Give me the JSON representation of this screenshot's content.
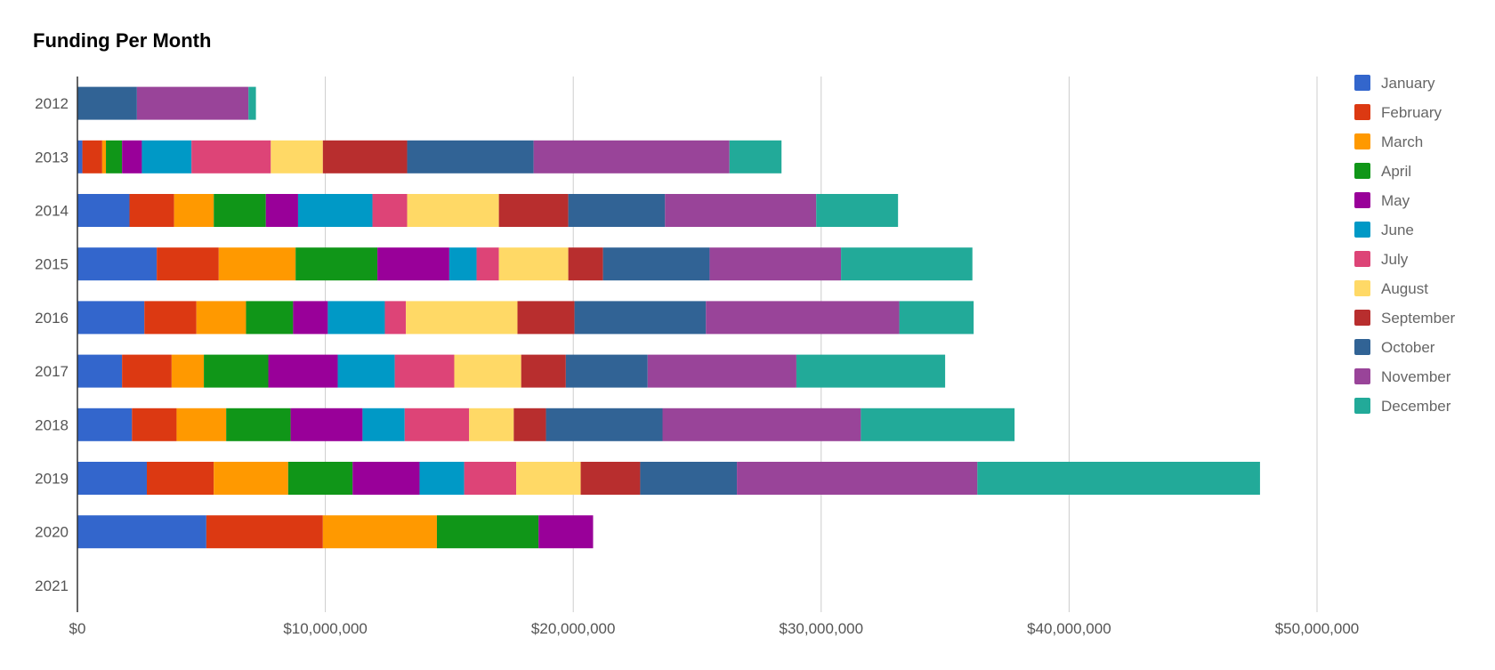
{
  "chart_data": {
    "type": "bar",
    "orientation": "horizontal",
    "stacked": true,
    "title": "Funding Per Month",
    "xlabel": "",
    "ylabel": "",
    "xlim": [
      0,
      50000000
    ],
    "x_ticks": [
      0,
      10000000,
      20000000,
      30000000,
      40000000,
      50000000
    ],
    "x_tick_labels": [
      "$0",
      "$10,000,000",
      "$20,000,000",
      "$30,000,000",
      "$40,000,000",
      "$50,000,000"
    ],
    "grid": true,
    "legend_position": "right",
    "categories": [
      "2012",
      "2013",
      "2014",
      "2015",
      "2016",
      "2017",
      "2018",
      "2019",
      "2020",
      "2021"
    ],
    "series": [
      {
        "name": "January",
        "color": "#3366cc",
        "values": [
          0,
          200000,
          2100000,
          3200000,
          2700000,
          1800000,
          2200000,
          2800000,
          5200000,
          0
        ]
      },
      {
        "name": "February",
        "color": "#dc3912",
        "values": [
          0,
          800000,
          1800000,
          2500000,
          2100000,
          2000000,
          1800000,
          2700000,
          4700000,
          0
        ]
      },
      {
        "name": "March",
        "color": "#ff9900",
        "values": [
          0,
          150000,
          1600000,
          3100000,
          2000000,
          1300000,
          2000000,
          3000000,
          4600000,
          0
        ]
      },
      {
        "name": "April",
        "color": "#109618",
        "values": [
          0,
          650000,
          2100000,
          3300000,
          1900000,
          2600000,
          2600000,
          2600000,
          4100000,
          0
        ]
      },
      {
        "name": "May",
        "color": "#990099",
        "values": [
          0,
          800000,
          1300000,
          2900000,
          1400000,
          2800000,
          2900000,
          2700000,
          2200000,
          0
        ]
      },
      {
        "name": "June",
        "color": "#0099c6",
        "values": [
          0,
          2000000,
          3000000,
          1100000,
          2300000,
          2300000,
          1700000,
          1800000,
          0,
          0
        ]
      },
      {
        "name": "July",
        "color": "#dd4477",
        "values": [
          0,
          3200000,
          1400000,
          900000,
          850000,
          2400000,
          2600000,
          2100000,
          0,
          0
        ]
      },
      {
        "name": "August",
        "color": "#ffd966",
        "values": [
          0,
          2100000,
          3700000,
          2800000,
          4500000,
          2700000,
          1800000,
          2600000,
          0,
          0
        ]
      },
      {
        "name": "September",
        "color": "#b82e2e",
        "values": [
          0,
          3400000,
          2800000,
          1400000,
          2300000,
          1800000,
          1300000,
          2400000,
          0,
          0
        ]
      },
      {
        "name": "October",
        "color": "#316395",
        "values": [
          2400000,
          5100000,
          3900000,
          4300000,
          5300000,
          3300000,
          4700000,
          3900000,
          0,
          0
        ]
      },
      {
        "name": "November",
        "color": "#994499",
        "values": [
          4500000,
          7900000,
          6100000,
          5300000,
          7800000,
          6000000,
          8000000,
          9700000,
          0,
          0
        ]
      },
      {
        "name": "December",
        "color": "#22aa99",
        "values": [
          300000,
          2100000,
          3300000,
          5300000,
          3000000,
          6000000,
          6200000,
          11400000,
          0,
          0
        ]
      }
    ]
  }
}
